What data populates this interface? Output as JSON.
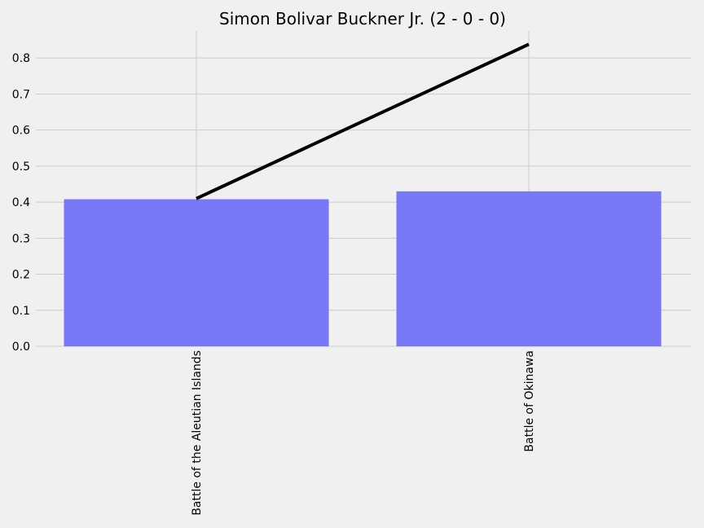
{
  "chart_data": {
    "type": "bar",
    "title": "Simon Bolivar Buckner Jr. (2 - 0 - 0)",
    "categories": [
      "Battle of the Aleutian Islands",
      "Battle of Okinawa"
    ],
    "series": [
      {
        "type": "bar",
        "values": [
          0.408,
          0.43
        ],
        "color": "#7777f7"
      },
      {
        "type": "line",
        "values": [
          0.41,
          0.838
        ],
        "color": "#000000"
      }
    ],
    "y_ticks": [
      "0.0",
      "0.1",
      "0.2",
      "0.3",
      "0.4",
      "0.5",
      "0.6",
      "0.7",
      "0.8"
    ],
    "ylim": [
      0,
      0.875
    ],
    "grid": true,
    "legend": "none"
  }
}
